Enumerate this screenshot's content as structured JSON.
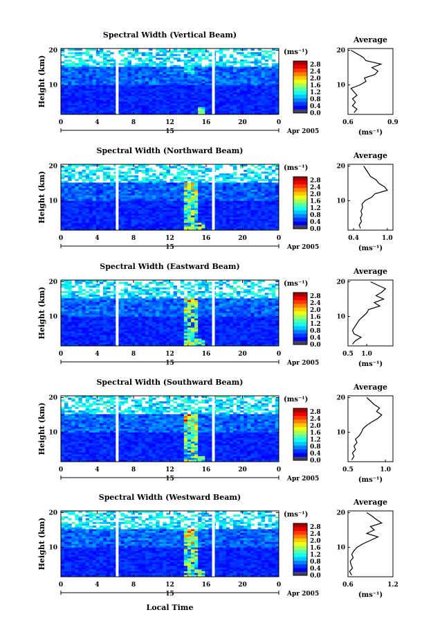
{
  "figure": {
    "xlabel": "Local Time",
    "date_label": "Apr 2005",
    "day_label": "15",
    "average_title": "Average",
    "colorbar_units": "(ms⁻¹)",
    "avg_units": "(ms⁻¹)"
  },
  "chart_data": [
    {
      "type": "heatmap",
      "title": "Spectral Width (Vertical Beam)",
      "xlabel": "Local Time",
      "ylabel": "Height (km)",
      "x_ticks": [
        "0",
        "4",
        "8",
        "12",
        "16",
        "20",
        "0"
      ],
      "y_ticks": [
        "10",
        "20"
      ],
      "xlim": [
        0,
        24
      ],
      "ylim": [
        1.5,
        20.5
      ],
      "colorbar_ticks": [
        "0.0",
        "0.4",
        "0.8",
        "1.2",
        "1.6",
        "2.0",
        "2.4",
        "2.8"
      ],
      "colorbar_range": [
        0.0,
        3.0
      ],
      "data_gaps_hours": [
        6.2,
        16.8
      ],
      "avg_profile": {
        "xlim": [
          0.6,
          0.9
        ],
        "x_ticks": [
          "0.6",
          "0.9"
        ],
        "y_ticks": [
          "10",
          "20"
        ],
        "heights": [
          2,
          3,
          4,
          5,
          6,
          7,
          8,
          9,
          10,
          11,
          12,
          13,
          14,
          15,
          16,
          17,
          18,
          19,
          20
        ],
        "values": [
          0.64,
          0.66,
          0.63,
          0.65,
          0.63,
          0.66,
          0.64,
          0.62,
          0.68,
          0.72,
          0.71,
          0.78,
          0.8,
          0.76,
          0.82,
          0.72,
          0.7,
          0.66,
          0.62
        ]
      }
    },
    {
      "type": "heatmap",
      "title": "Spectral Width (Northward Beam)",
      "xlabel": "Local Time",
      "ylabel": "Height (km)",
      "x_ticks": [
        "0",
        "4",
        "8",
        "12",
        "16",
        "20",
        "0"
      ],
      "y_ticks": [
        "10",
        "20"
      ],
      "xlim": [
        0,
        24
      ],
      "ylim": [
        1.5,
        20.5
      ],
      "colorbar_ticks": [
        "0.0",
        "0.4",
        "0.8",
        "1.2",
        "1.6",
        "2.0",
        "2.4",
        "2.8"
      ],
      "colorbar_range": [
        0.0,
        3.0
      ],
      "data_gaps_hours": [
        6.2,
        16.8
      ],
      "avg_profile": {
        "xlim": [
          0.3,
          1.1
        ],
        "x_ticks": [
          "0.4",
          "1.0"
        ],
        "y_ticks": [
          "10",
          "20"
        ],
        "heights": [
          2,
          3,
          4,
          5,
          6,
          7,
          8,
          9,
          10,
          11,
          12,
          13,
          14,
          15,
          16,
          17,
          18,
          19,
          20
        ],
        "values": [
          0.52,
          0.5,
          0.54,
          0.52,
          0.55,
          0.53,
          0.56,
          0.55,
          0.6,
          0.72,
          0.78,
          1.0,
          0.95,
          0.85,
          0.8,
          0.7,
          0.66,
          0.62,
          0.58
        ]
      }
    },
    {
      "type": "heatmap",
      "title": "Spectral Width (Eastward Beam)",
      "xlabel": "Local Time",
      "ylabel": "Height (km)",
      "x_ticks": [
        "0",
        "4",
        "8",
        "12",
        "16",
        "20",
        "0"
      ],
      "y_ticks": [
        "10",
        "20"
      ],
      "xlim": [
        0,
        24
      ],
      "ylim": [
        1.5,
        20.5
      ],
      "colorbar_ticks": [
        "0.0",
        "0.4",
        "0.8",
        "1.2",
        "1.6",
        "2.0",
        "2.4",
        "2.8"
      ],
      "colorbar_range": [
        0.0,
        3.0
      ],
      "data_gaps_hours": [
        6.2,
        16.8
      ],
      "avg_profile": {
        "xlim": [
          0.5,
          1.7
        ],
        "x_ticks": [
          "0.5",
          "1.0"
        ],
        "y_ticks": [
          "10",
          "20"
        ],
        "heights": [
          2,
          3,
          4,
          5,
          6,
          7,
          8,
          9,
          10,
          11,
          12,
          13,
          14,
          15,
          16,
          17,
          18,
          19,
          20
        ],
        "values": [
          0.62,
          0.7,
          0.85,
          0.66,
          0.62,
          0.68,
          0.74,
          0.8,
          0.9,
          1.0,
          1.05,
          1.35,
          1.2,
          1.45,
          1.25,
          1.4,
          1.5,
          1.3,
          1.1
        ]
      }
    },
    {
      "type": "heatmap",
      "title": "Spectral Width (Southward Beam)",
      "xlabel": "Local Time",
      "ylabel": "Height (km)",
      "x_ticks": [
        "0",
        "4",
        "8",
        "12",
        "16",
        "20",
        "0"
      ],
      "y_ticks": [
        "10",
        "20"
      ],
      "xlim": [
        0,
        24
      ],
      "ylim": [
        1.5,
        20.5
      ],
      "colorbar_ticks": [
        "0.0",
        "0.4",
        "0.8",
        "1.2",
        "1.6",
        "2.0",
        "2.4",
        "2.8"
      ],
      "colorbar_range": [
        0.0,
        3.0
      ],
      "data_gaps_hours": [
        6.2,
        16.8
      ],
      "avg_profile": {
        "xlim": [
          0.5,
          1.1
        ],
        "x_ticks": [
          "0.5",
          "1.0"
        ],
        "y_ticks": [
          "10",
          "20"
        ],
        "heights": [
          2,
          3,
          4,
          5,
          6,
          7,
          8,
          9,
          10,
          11,
          12,
          13,
          14,
          15,
          16,
          17,
          18,
          19,
          20
        ],
        "values": [
          0.55,
          0.58,
          0.56,
          0.6,
          0.58,
          0.62,
          0.6,
          0.65,
          0.68,
          0.7,
          0.75,
          0.82,
          0.9,
          0.95,
          0.88,
          0.92,
          0.85,
          0.8,
          0.75
        ]
      }
    },
    {
      "type": "heatmap",
      "title": "Spectral Width (Westward Beam)",
      "xlabel": "Local Time",
      "ylabel": "Height (km)",
      "x_ticks": [
        "0",
        "4",
        "8",
        "12",
        "16",
        "20",
        "0"
      ],
      "y_ticks": [
        "10",
        "20"
      ],
      "xlim": [
        0,
        24
      ],
      "ylim": [
        1.5,
        20.5
      ],
      "colorbar_ticks": [
        "0.0",
        "0.4",
        "0.8",
        "1.2",
        "1.6",
        "2.0",
        "2.4",
        "2.8"
      ],
      "colorbar_range": [
        0.0,
        3.0
      ],
      "data_gaps_hours": [
        6.2,
        16.8
      ],
      "avg_profile": {
        "xlim": [
          0.6,
          1.2
        ],
        "x_ticks": [
          "0.6",
          "1.2"
        ],
        "y_ticks": [
          "10",
          "20"
        ],
        "heights": [
          2,
          3,
          4,
          5,
          6,
          7,
          8,
          9,
          10,
          11,
          12,
          13,
          14,
          15,
          16,
          17,
          18,
          19,
          20
        ],
        "values": [
          0.65,
          0.62,
          0.66,
          0.64,
          0.63,
          0.67,
          0.65,
          0.68,
          0.72,
          0.8,
          0.9,
          1.0,
          0.85,
          0.95,
          0.9,
          1.05,
          0.98,
          0.92,
          0.85
        ]
      }
    }
  ]
}
